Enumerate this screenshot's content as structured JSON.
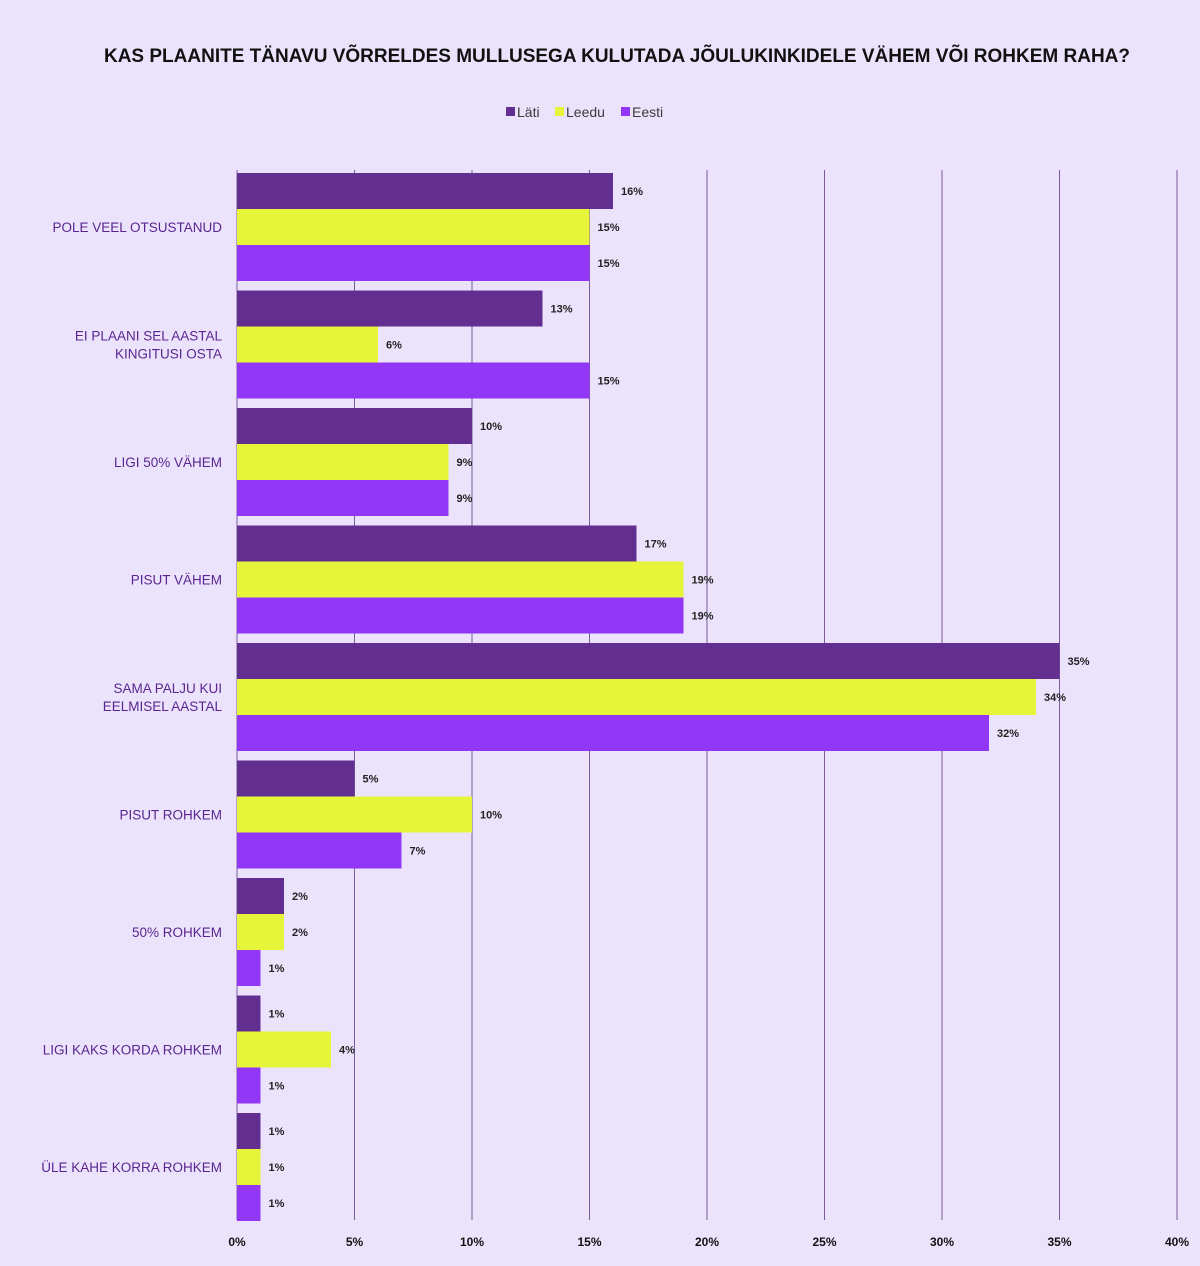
{
  "chart_data": {
    "type": "bar",
    "orientation": "horizontal",
    "title": "KAS PLAANITE TÄNAVU VÕRRELDES MULLUSEGA KULUTADA JÕULUKINKIDELE VÄHEM VÕI ROHKEM RAHA?",
    "xlabel": "",
    "ylabel": "",
    "xlim": [
      0,
      40
    ],
    "x_ticks": [
      "0%",
      "5%",
      "10%",
      "15%",
      "20%",
      "25%",
      "30%",
      "35%",
      "40%"
    ],
    "grid": "vertical",
    "legend_position": "top-center",
    "categories": [
      [
        "POLE VEEL OTSUSTANUD"
      ],
      [
        "EI PLAANI SEL AASTAL",
        "KINGITUSI OSTA"
      ],
      [
        "LIGI 50% VÄHEM"
      ],
      [
        "PISUT VÄHEM"
      ],
      [
        "SAMA PALJU KUI",
        "EELMISEL AASTAL"
      ],
      [
        "PISUT ROHKEM"
      ],
      [
        "50% ROHKEM"
      ],
      [
        "LIGI KAKS KORDA ROHKEM"
      ],
      [
        "ÜLE KAHE KORRA ROHKEM"
      ]
    ],
    "series": [
      {
        "name": "Läti",
        "color": "#622f91",
        "values": [
          16,
          13,
          10,
          17,
          35,
          5,
          2,
          1,
          1
        ],
        "labels": [
          "16%",
          "13%",
          "10%",
          "17%",
          "35%",
          "5%",
          "2%",
          "1%",
          "1%"
        ]
      },
      {
        "name": "Leedu",
        "color": "#e6f53a",
        "values": [
          15,
          6,
          9,
          19,
          34,
          10,
          2,
          4,
          1
        ],
        "labels": [
          "15%",
          "6%",
          "9%",
          "19%",
          "34%",
          "10%",
          "2%",
          "4%",
          "1%"
        ]
      },
      {
        "name": "Eesti",
        "color": "#9137f5",
        "values": [
          15,
          15,
          9,
          19,
          32,
          7,
          1,
          1,
          1
        ],
        "labels": [
          "15%",
          "15%",
          "9%",
          "19%",
          "32%",
          "7%",
          "1%",
          "1%",
          "1%"
        ]
      }
    ]
  }
}
